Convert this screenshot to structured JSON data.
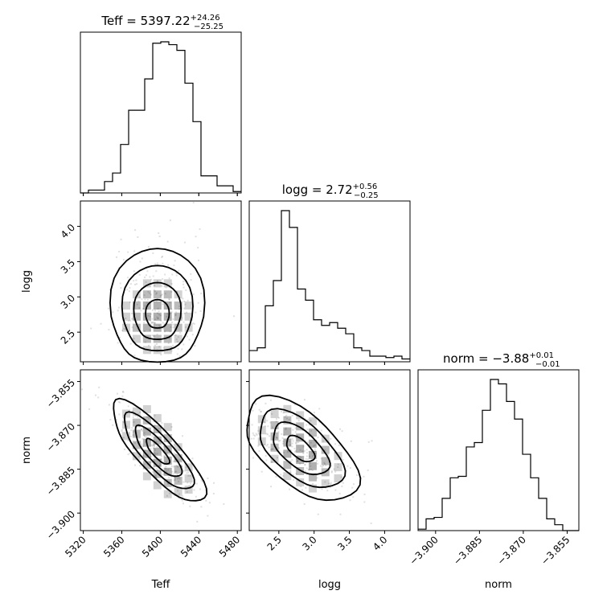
{
  "chart_data": {
    "type": "corner",
    "parameters": [
      "Teff",
      "logg",
      "norm"
    ],
    "titles": [
      {
        "param": "Teff",
        "prefix": "Teff = 5397.22",
        "sup": "+24.26",
        "sub": "−25.25"
      },
      {
        "param": "logg",
        "prefix": "logg = 2.72",
        "sup": "+0.56",
        "sub": "−0.25"
      },
      {
        "param": "norm",
        "prefix": "norm = −3.88",
        "sup": "+0.01",
        "sub": "−0.01"
      }
    ],
    "axis_labels": {
      "Teff": "Teff",
      "logg": "logg",
      "norm": "norm"
    },
    "ranges": {
      "Teff": [
        5317,
        5484
      ],
      "logg": [
        2.08,
        4.36
      ],
      "norm": [
        -3.906,
        -3.851
      ]
    },
    "ticks": {
      "Teff": [
        5320,
        5360,
        5400,
        5440,
        5480
      ],
      "logg": [
        2.5,
        3.0,
        3.5,
        4.0
      ],
      "norm": [
        -3.9,
        -3.885,
        -3.87,
        -3.855
      ]
    },
    "tick_labels": {
      "Teff": [
        "5320",
        "5360",
        "5400",
        "5440",
        "5480"
      ],
      "logg": [
        "2.5",
        "3.0",
        "3.5",
        "4.0"
      ],
      "norm": [
        "−3.900",
        "−3.885",
        "−3.870",
        "−3.855"
      ]
    },
    "histograms": {
      "Teff": {
        "edges_start": 5317,
        "bin_width": 8.35,
        "counts": [
          0,
          2,
          2,
          8,
          14,
          34,
          58,
          58,
          80,
          105,
          106,
          104,
          100,
          77,
          50,
          12,
          12,
          5,
          5,
          1
        ]
      },
      "logg": {
        "edges_start": 2.08,
        "bin_width": 0.114,
        "counts": [
          8,
          10,
          40,
          58,
          108,
          96,
          52,
          44,
          30,
          26,
          28,
          24,
          20,
          10,
          8,
          4,
          4,
          3,
          4,
          2
        ]
      },
      "norm": {
        "edges_start": -3.906,
        "bin_width": 0.00275,
        "counts": [
          1,
          8,
          9,
          22,
          36,
          37,
          57,
          60,
          82,
          103,
          100,
          88,
          76,
          52,
          36,
          22,
          8,
          4,
          0,
          0
        ]
      }
    },
    "pairs": [
      {
        "x": "Teff",
        "y": "logg"
      },
      {
        "x": "Teff",
        "y": "norm"
      },
      {
        "x": "logg",
        "y": "norm"
      }
    ],
    "grid": false,
    "legend": "none"
  }
}
